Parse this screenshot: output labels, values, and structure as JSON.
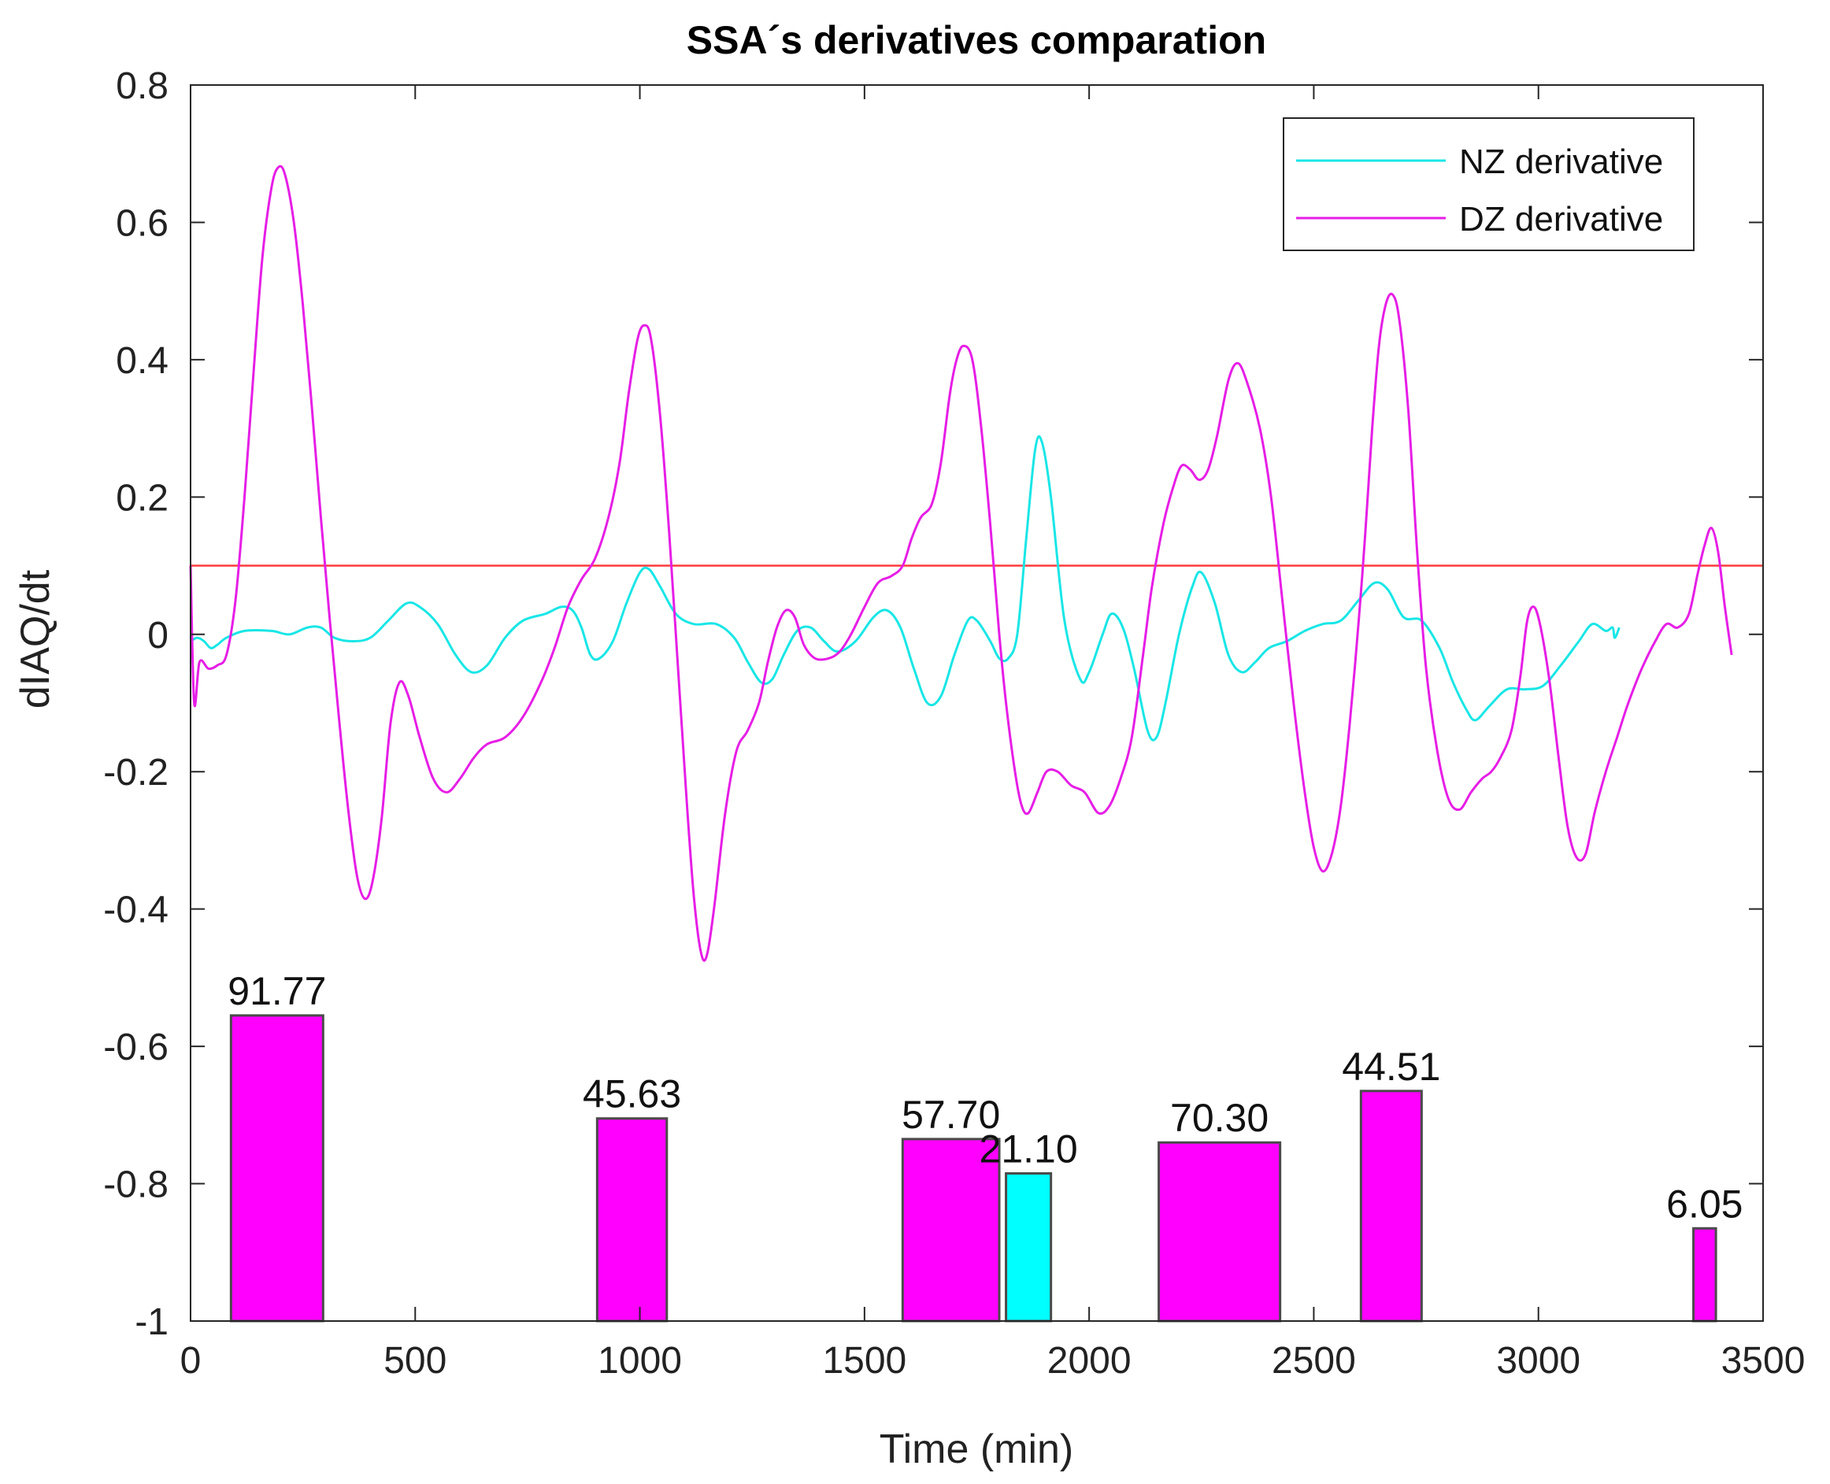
{
  "chart_data": {
    "type": "line",
    "title": "SSA´s derivatives comparation",
    "xlabel": "Time (min)",
    "ylabel": "dIAQ/dt",
    "xlim": [
      0,
      3500
    ],
    "ylim": [
      -1,
      0.8
    ],
    "xticks": [
      0,
      500,
      1000,
      1500,
      2000,
      2500,
      3000,
      3500
    ],
    "xtick_labels": [
      "0",
      "500",
      "1000",
      "1500",
      "2000",
      "2500",
      "3000",
      "3500"
    ],
    "yticks": [
      -1,
      -0.8,
      -0.6,
      -0.4,
      -0.2,
      0,
      0.2,
      0.4,
      0.6,
      0.8
    ],
    "ytick_labels": [
      "-1",
      "-0.8",
      "-0.6",
      "-0.4",
      "-0.2",
      "0",
      "0.2",
      "0.4",
      "0.6",
      "0.8"
    ],
    "grid": false,
    "legend_position": "top-right",
    "threshold": {
      "value": 0.1,
      "color": "#ff3b3b"
    },
    "series": [
      {
        "name": "NZ derivative",
        "color": "#19e6e6",
        "points": [
          [
            0,
            -0.01
          ],
          [
            15,
            -0.005
          ],
          [
            30,
            -0.01
          ],
          [
            45,
            -0.02
          ],
          [
            60,
            -0.015
          ],
          [
            80,
            -0.005
          ],
          [
            120,
            0.005
          ],
          [
            180,
            0.005
          ],
          [
            220,
            0.0
          ],
          [
            260,
            0.01
          ],
          [
            290,
            0.01
          ],
          [
            320,
            -0.005
          ],
          [
            360,
            -0.01
          ],
          [
            400,
            -0.005
          ],
          [
            440,
            0.02
          ],
          [
            480,
            0.045
          ],
          [
            510,
            0.04
          ],
          [
            550,
            0.015
          ],
          [
            590,
            -0.03
          ],
          [
            625,
            -0.055
          ],
          [
            660,
            -0.045
          ],
          [
            700,
            -0.005
          ],
          [
            740,
            0.02
          ],
          [
            790,
            0.03
          ],
          [
            825,
            0.04
          ],
          [
            850,
            0.035
          ],
          [
            870,
            0.01
          ],
          [
            890,
            -0.03
          ],
          [
            910,
            -0.035
          ],
          [
            940,
            -0.01
          ],
          [
            970,
            0.045
          ],
          [
            1000,
            0.09
          ],
          [
            1020,
            0.095
          ],
          [
            1045,
            0.07
          ],
          [
            1080,
            0.03
          ],
          [
            1120,
            0.015
          ],
          [
            1170,
            0.015
          ],
          [
            1210,
            -0.005
          ],
          [
            1240,
            -0.04
          ],
          [
            1270,
            -0.07
          ],
          [
            1295,
            -0.065
          ],
          [
            1320,
            -0.03
          ],
          [
            1350,
            0.005
          ],
          [
            1380,
            0.01
          ],
          [
            1410,
            -0.01
          ],
          [
            1440,
            -0.025
          ],
          [
            1480,
            -0.01
          ],
          [
            1520,
            0.025
          ],
          [
            1550,
            0.035
          ],
          [
            1580,
            0.01
          ],
          [
            1610,
            -0.05
          ],
          [
            1640,
            -0.1
          ],
          [
            1670,
            -0.09
          ],
          [
            1700,
            -0.03
          ],
          [
            1730,
            0.02
          ],
          [
            1750,
            0.02
          ],
          [
            1780,
            -0.01
          ],
          [
            1800,
            -0.035
          ],
          [
            1820,
            -0.035
          ],
          [
            1840,
            0.0
          ],
          [
            1860,
            0.14
          ],
          [
            1880,
            0.27
          ],
          [
            1895,
            0.28
          ],
          [
            1915,
            0.2
          ],
          [
            1945,
            0.02
          ],
          [
            1980,
            -0.065
          ],
          [
            2000,
            -0.055
          ],
          [
            2030,
            0.0
          ],
          [
            2050,
            0.03
          ],
          [
            2075,
            0.01
          ],
          [
            2100,
            -0.05
          ],
          [
            2130,
            -0.14
          ],
          [
            2150,
            -0.15
          ],
          [
            2170,
            -0.1
          ],
          [
            2200,
            0.0
          ],
          [
            2230,
            0.07
          ],
          [
            2250,
            0.09
          ],
          [
            2280,
            0.045
          ],
          [
            2310,
            -0.03
          ],
          [
            2340,
            -0.055
          ],
          [
            2370,
            -0.04
          ],
          [
            2400,
            -0.02
          ],
          [
            2440,
            -0.01
          ],
          [
            2480,
            0.005
          ],
          [
            2520,
            0.015
          ],
          [
            2560,
            0.02
          ],
          [
            2600,
            0.05
          ],
          [
            2635,
            0.075
          ],
          [
            2665,
            0.065
          ],
          [
            2700,
            0.025
          ],
          [
            2740,
            0.02
          ],
          [
            2780,
            -0.02
          ],
          [
            2810,
            -0.07
          ],
          [
            2840,
            -0.11
          ],
          [
            2860,
            -0.125
          ],
          [
            2890,
            -0.105
          ],
          [
            2930,
            -0.08
          ],
          [
            2970,
            -0.08
          ],
          [
            3010,
            -0.075
          ],
          [
            3050,
            -0.045
          ],
          [
            3090,
            -0.01
          ],
          [
            3120,
            0.015
          ],
          [
            3150,
            0.005
          ],
          [
            3165,
            0.01
          ],
          [
            3170,
            -0.005
          ],
          [
            3180,
            0.01
          ]
        ]
      },
      {
        "name": "DZ derivative",
        "color": "#e61ee6",
        "points": [
          [
            0,
            0.1
          ],
          [
            8,
            -0.1
          ],
          [
            20,
            -0.04
          ],
          [
            40,
            -0.05
          ],
          [
            60,
            -0.045
          ],
          [
            80,
            -0.03
          ],
          [
            100,
            0.05
          ],
          [
            120,
            0.2
          ],
          [
            140,
            0.38
          ],
          [
            160,
            0.55
          ],
          [
            180,
            0.65
          ],
          [
            195,
            0.68
          ],
          [
            210,
            0.67
          ],
          [
            230,
            0.6
          ],
          [
            250,
            0.48
          ],
          [
            270,
            0.33
          ],
          [
            290,
            0.17
          ],
          [
            310,
            0.02
          ],
          [
            330,
            -0.12
          ],
          [
            350,
            -0.25
          ],
          [
            370,
            -0.35
          ],
          [
            388,
            -0.385
          ],
          [
            405,
            -0.36
          ],
          [
            425,
            -0.27
          ],
          [
            445,
            -0.13
          ],
          [
            465,
            -0.07
          ],
          [
            485,
            -0.09
          ],
          [
            510,
            -0.15
          ],
          [
            540,
            -0.21
          ],
          [
            570,
            -0.23
          ],
          [
            600,
            -0.21
          ],
          [
            630,
            -0.18
          ],
          [
            660,
            -0.16
          ],
          [
            700,
            -0.15
          ],
          [
            740,
            -0.12
          ],
          [
            780,
            -0.07
          ],
          [
            810,
            -0.02
          ],
          [
            840,
            0.04
          ],
          [
            870,
            0.08
          ],
          [
            900,
            0.11
          ],
          [
            930,
            0.17
          ],
          [
            955,
            0.25
          ],
          [
            975,
            0.35
          ],
          [
            995,
            0.43
          ],
          [
            1010,
            0.45
          ],
          [
            1025,
            0.43
          ],
          [
            1045,
            0.32
          ],
          [
            1065,
            0.15
          ],
          [
            1085,
            -0.05
          ],
          [
            1105,
            -0.25
          ],
          [
            1120,
            -0.38
          ],
          [
            1135,
            -0.46
          ],
          [
            1148,
            -0.47
          ],
          [
            1165,
            -0.4
          ],
          [
            1190,
            -0.26
          ],
          [
            1215,
            -0.17
          ],
          [
            1240,
            -0.14
          ],
          [
            1265,
            -0.1
          ],
          [
            1285,
            -0.04
          ],
          [
            1305,
            0.01
          ],
          [
            1325,
            0.035
          ],
          [
            1345,
            0.025
          ],
          [
            1365,
            -0.015
          ],
          [
            1390,
            -0.035
          ],
          [
            1420,
            -0.035
          ],
          [
            1445,
            -0.025
          ],
          [
            1470,
            0.0
          ],
          [
            1500,
            0.04
          ],
          [
            1530,
            0.075
          ],
          [
            1560,
            0.085
          ],
          [
            1585,
            0.1
          ],
          [
            1605,
            0.14
          ],
          [
            1625,
            0.17
          ],
          [
            1650,
            0.19
          ],
          [
            1670,
            0.25
          ],
          [
            1690,
            0.35
          ],
          [
            1705,
            0.4
          ],
          [
            1720,
            0.42
          ],
          [
            1740,
            0.4
          ],
          [
            1760,
            0.3
          ],
          [
            1780,
            0.16
          ],
          [
            1800,
            0.0
          ],
          [
            1815,
            -0.1
          ],
          [
            1835,
            -0.2
          ],
          [
            1850,
            -0.25
          ],
          [
            1865,
            -0.26
          ],
          [
            1885,
            -0.23
          ],
          [
            1905,
            -0.2
          ],
          [
            1930,
            -0.2
          ],
          [
            1960,
            -0.22
          ],
          [
            1990,
            -0.23
          ],
          [
            2020,
            -0.26
          ],
          [
            2045,
            -0.25
          ],
          [
            2070,
            -0.21
          ],
          [
            2095,
            -0.15
          ],
          [
            2120,
            -0.03
          ],
          [
            2140,
            0.07
          ],
          [
            2165,
            0.16
          ],
          [
            2185,
            0.21
          ],
          [
            2205,
            0.245
          ],
          [
            2225,
            0.24
          ],
          [
            2245,
            0.225
          ],
          [
            2265,
            0.24
          ],
          [
            2285,
            0.29
          ],
          [
            2310,
            0.37
          ],
          [
            2330,
            0.395
          ],
          [
            2350,
            0.37
          ],
          [
            2380,
            0.3
          ],
          [
            2405,
            0.2
          ],
          [
            2430,
            0.05
          ],
          [
            2455,
            -0.1
          ],
          [
            2480,
            -0.23
          ],
          [
            2500,
            -0.31
          ],
          [
            2520,
            -0.345
          ],
          [
            2540,
            -0.32
          ],
          [
            2560,
            -0.25
          ],
          [
            2580,
            -0.13
          ],
          [
            2600,
            0.02
          ],
          [
            2615,
            0.15
          ],
          [
            2630,
            0.3
          ],
          [
            2645,
            0.42
          ],
          [
            2660,
            0.48
          ],
          [
            2675,
            0.495
          ],
          [
            2690,
            0.46
          ],
          [
            2710,
            0.33
          ],
          [
            2730,
            0.12
          ],
          [
            2750,
            -0.05
          ],
          [
            2775,
            -0.17
          ],
          [
            2800,
            -0.24
          ],
          [
            2825,
            -0.255
          ],
          [
            2850,
            -0.23
          ],
          [
            2875,
            -0.21
          ],
          [
            2895,
            -0.2
          ],
          [
            2915,
            -0.18
          ],
          [
            2940,
            -0.14
          ],
          [
            2960,
            -0.06
          ],
          [
            2975,
            0.02
          ],
          [
            2990,
            0.04
          ],
          [
            3005,
            0.01
          ],
          [
            3025,
            -0.07
          ],
          [
            3045,
            -0.18
          ],
          [
            3065,
            -0.28
          ],
          [
            3085,
            -0.325
          ],
          [
            3105,
            -0.32
          ],
          [
            3125,
            -0.26
          ],
          [
            3150,
            -0.2
          ],
          [
            3175,
            -0.15
          ],
          [
            3200,
            -0.1
          ],
          [
            3230,
            -0.05
          ],
          [
            3260,
            -0.01
          ],
          [
            3285,
            0.015
          ],
          [
            3310,
            0.01
          ],
          [
            3335,
            0.03
          ],
          [
            3355,
            0.09
          ],
          [
            3370,
            0.13
          ],
          [
            3385,
            0.155
          ],
          [
            3400,
            0.12
          ],
          [
            3415,
            0.04
          ],
          [
            3430,
            -0.03
          ]
        ]
      }
    ],
    "bars": [
      {
        "x0": 90,
        "x1": 295,
        "top": -0.555,
        "label": "91.77",
        "color": "#ff00ff"
      },
      {
        "x0": 905,
        "x1": 1060,
        "top": -0.705,
        "label": "45.63",
        "color": "#ff00ff"
      },
      {
        "x0": 1585,
        "x1": 1800,
        "top": -0.735,
        "label": "57.70",
        "color": "#ff00ff"
      },
      {
        "x0": 1815,
        "x1": 1915,
        "top": -0.785,
        "label": "21.10",
        "color": "#00ffff"
      },
      {
        "x0": 2155,
        "x1": 2425,
        "top": -0.74,
        "label": "70.30",
        "color": "#ff00ff"
      },
      {
        "x0": 2605,
        "x1": 2740,
        "top": -0.665,
        "label": "44.51",
        "color": "#ff00ff"
      },
      {
        "x0": 3345,
        "x1": 3395,
        "top": -0.865,
        "label": "6.05",
        "color": "#ff00ff"
      }
    ]
  }
}
